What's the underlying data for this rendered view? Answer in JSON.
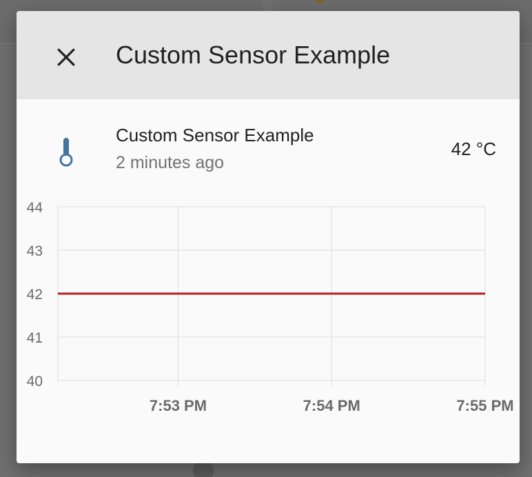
{
  "dialog": {
    "title": "Custom Sensor Example"
  },
  "entity": {
    "name": "Custom Sensor Example",
    "last_changed": "2 minutes ago",
    "state": "42 °C",
    "icon": "thermometer-icon"
  },
  "colors": {
    "icon": "#44739e",
    "line": "#b71c1c",
    "grid": "#dcdcdc",
    "tick_text": "#6a6a6a",
    "header_bg": "#e5e5e5"
  },
  "chart_data": {
    "type": "line",
    "title": "",
    "xlabel": "",
    "ylabel": "",
    "ylim": [
      40,
      44
    ],
    "yticks": [
      "40",
      "41",
      "42",
      "43",
      "44"
    ],
    "xticks": [
      "7:53 PM",
      "7:54 PM",
      "7:55 PM"
    ],
    "xlim": [
      "7:52:13 PM",
      "7:55 PM"
    ],
    "grid": true,
    "legend": "none",
    "series": [
      {
        "x": [
          "7:52:13 PM",
          "7:55 PM"
        ],
        "values": [
          42,
          42
        ]
      }
    ]
  }
}
